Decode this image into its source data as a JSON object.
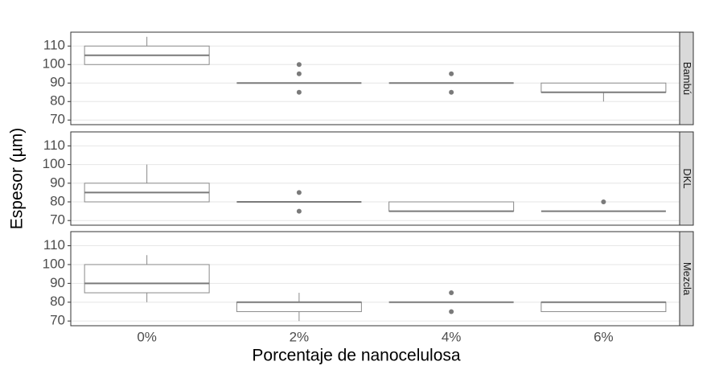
{
  "chart_data": {
    "type": "box",
    "xlabel": "Porcentaje de nanocelulosa",
    "ylabel": "Espesor (µm)",
    "categories": [
      "0%",
      "2%",
      "4%",
      "6%"
    ],
    "ylim": [
      67.5,
      117.5
    ],
    "yticks": [
      70,
      80,
      90,
      100,
      110
    ],
    "grid": true,
    "color": "#8a8a8a",
    "panels": [
      {
        "facet": "Bambú",
        "boxes": [
          {
            "min": 100,
            "q1": 100,
            "median": 105,
            "q3": 110,
            "max": 115,
            "outliers": []
          },
          {
            "min": 90,
            "q1": 90,
            "median": 90,
            "q3": 90,
            "max": 90,
            "outliers": [
              100,
              95,
              85
            ]
          },
          {
            "min": 90,
            "q1": 90,
            "median": 90,
            "q3": 90,
            "max": 90,
            "outliers": [
              95,
              85
            ]
          },
          {
            "min": 80,
            "q1": 85,
            "median": 85,
            "q3": 90,
            "max": 90,
            "outliers": []
          }
        ]
      },
      {
        "facet": "DKL",
        "boxes": [
          {
            "min": 80,
            "q1": 80,
            "median": 85,
            "q3": 90,
            "max": 100,
            "outliers": []
          },
          {
            "min": 80,
            "q1": 80,
            "median": 80,
            "q3": 80,
            "max": 80,
            "outliers": [
              85,
              75
            ]
          },
          {
            "min": 75,
            "q1": 75,
            "median": 75,
            "q3": 80,
            "max": 80,
            "outliers": []
          },
          {
            "min": 75,
            "q1": 75,
            "median": 75,
            "q3": 75,
            "max": 75,
            "outliers": [
              80
            ]
          }
        ]
      },
      {
        "facet": "Mezcla",
        "boxes": [
          {
            "min": 80,
            "q1": 85,
            "median": 90,
            "q3": 100,
            "max": 105,
            "outliers": []
          },
          {
            "min": 70,
            "q1": 75,
            "median": 80,
            "q3": 80,
            "max": 85,
            "outliers": []
          },
          {
            "min": 80,
            "q1": 80,
            "median": 80,
            "q3": 80,
            "max": 80,
            "outliers": [
              85,
              75
            ]
          },
          {
            "min": 75,
            "q1": 75,
            "median": 80,
            "q3": 80,
            "max": 80,
            "outliers": []
          }
        ]
      }
    ]
  }
}
